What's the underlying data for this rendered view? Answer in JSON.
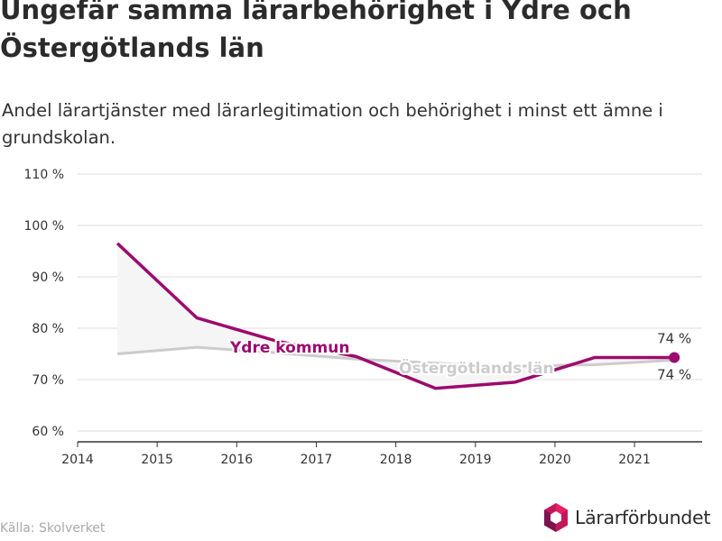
{
  "title": "Ungefär samma lärarbehörighet i Ydre och Östergötlands län",
  "subtitle": "Andel lärartjänster med lärarlegitimation och behörighet i minst ett ämne i grundskolan.",
  "source": "Källa: Skolverket",
  "brand": "Lärarförbundet",
  "colors": {
    "ydre": "#9c0a6e",
    "lan": "#cccccc",
    "area": "#f5f5f5",
    "grid": "#dddddd",
    "axis": "#333333"
  },
  "chart_data": {
    "type": "line",
    "x_ticks": [
      "2014",
      "2015",
      "2016",
      "2017",
      "2018",
      "2019",
      "2020",
      "2021"
    ],
    "y_ticks": [
      "60 %",
      "70 %",
      "80 %",
      "90 %",
      "100 %",
      "110 %"
    ],
    "xlim": [
      2014,
      2021.85
    ],
    "ylim": [
      60,
      110
    ],
    "grid": true,
    "series": [
      {
        "name": "Ydre kommun",
        "x": [
          2014.5,
          2015.5,
          2016.5,
          2017.5,
          2018.5,
          2019.5,
          2020.5,
          2021.5
        ],
        "values": [
          96.5,
          82,
          77.5,
          74.5,
          68.3,
          69.5,
          74.3,
          74.3
        ],
        "end_label": "74 %"
      },
      {
        "name": "Östergötlands län",
        "x": [
          2014.5,
          2015.5,
          2016.5,
          2017.5,
          2018.5,
          2019.5,
          2020.5,
          2021.5
        ],
        "values": [
          75,
          76.3,
          75.2,
          74,
          73.2,
          72.6,
          72.9,
          73.8
        ],
        "end_label": "74 %"
      }
    ]
  }
}
